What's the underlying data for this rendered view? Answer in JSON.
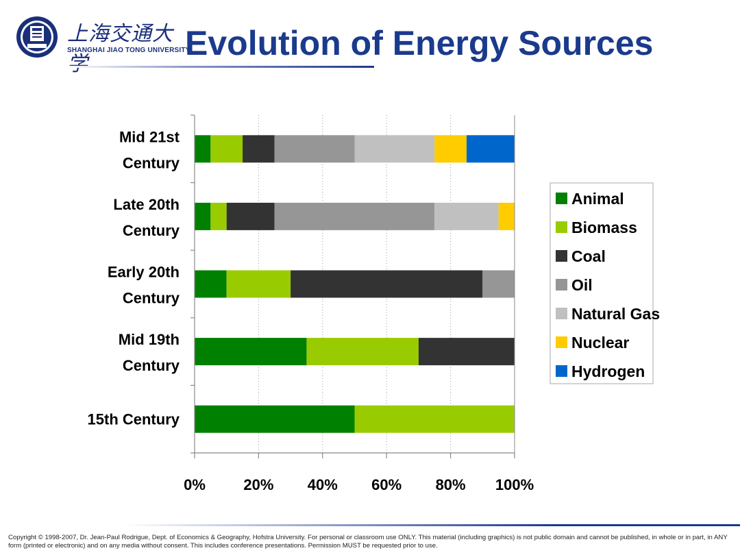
{
  "header": {
    "title": "Evolution of Energy Sources",
    "logo_text_cn": "上海交通大学",
    "logo_text_en": "SHANGHAI JIAO TONG UNIVERSITY"
  },
  "footer": {
    "copyright": "Copyright © 1998-2007, Dr. Jean-Paul Rodrigue, Dept. of Economics & Geography, Hofstra University. For personal or classroom use ONLY. This material (including graphics) is not public domain and cannot be published, in whole or in part, in ANY form (printed or electronic) and on any media without consent. This includes conference presentations. Permission MUST be requested prior to use."
  },
  "chart_data": {
    "type": "bar",
    "orientation": "horizontal",
    "stacked": true,
    "categories": [
      [
        "Mid 21st",
        "Century"
      ],
      [
        "Late 20th",
        "Century"
      ],
      [
        "Early 20th",
        "Century"
      ],
      [
        "Mid 19th",
        "Century"
      ],
      [
        "15th Century"
      ]
    ],
    "series": [
      {
        "name": "Animal",
        "color": "#008000",
        "values": [
          5,
          5,
          10,
          35,
          50
        ]
      },
      {
        "name": "Biomass",
        "color": "#99cc00",
        "values": [
          10,
          5,
          20,
          35,
          50
        ]
      },
      {
        "name": "Coal",
        "color": "#333333",
        "values": [
          10,
          15,
          60,
          30,
          0
        ]
      },
      {
        "name": "Oil",
        "color": "#969696",
        "values": [
          25,
          50,
          10,
          0,
          0
        ]
      },
      {
        "name": "Natural Gas",
        "color": "#c0c0c0",
        "values": [
          25,
          20,
          0,
          0,
          0
        ]
      },
      {
        "name": "Nuclear",
        "color": "#ffcc00",
        "values": [
          10,
          5,
          0,
          0,
          0
        ]
      },
      {
        "name": "Hydrogen",
        "color": "#0066cc",
        "values": [
          15,
          0,
          0,
          0,
          0
        ]
      }
    ],
    "xticks": [
      "0%",
      "20%",
      "40%",
      "60%",
      "80%",
      "100%"
    ],
    "xlim": [
      0,
      100
    ],
    "grid": "vertical dotted",
    "legend": "right"
  }
}
